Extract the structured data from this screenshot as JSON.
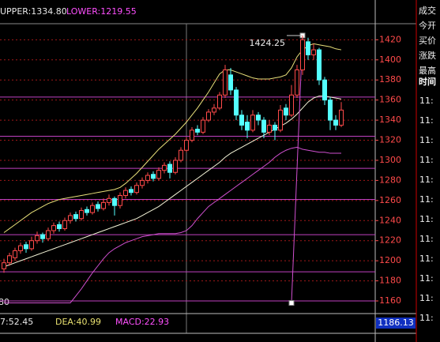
{
  "chart_data": {
    "type": "candlestick",
    "header": {
      "upper": "UPPER:1334.80",
      "lower": "LOWER:1219.55"
    },
    "footer": {
      "dif": "7:52.45",
      "dea": "DEA:40.99",
      "macd": "MACD:22.93"
    },
    "left_cut_label": "80",
    "current_label": "1186.13",
    "annotation": {
      "text": "1424.25",
      "value": 1424.25
    },
    "zigzag": {
      "x": [
        52,
        54
      ],
      "values": [
        1158,
        1424.25
      ]
    },
    "ylim": [
      1149,
      1436
    ],
    "yticks": [
      1160,
      1180,
      1200,
      1220,
      1240,
      1260,
      1280,
      1300,
      1320,
      1340,
      1360,
      1380,
      1400,
      1420
    ],
    "grid": true,
    "levels": [
      1363,
      1324,
      1292,
      1261,
      1226,
      1189,
      1160
    ],
    "up_color": "#ff4a4a",
    "down_color": "#54ffff",
    "candles": [
      [
        1192,
        1202,
        1188,
        1198
      ],
      [
        1198,
        1208,
        1195,
        1205
      ],
      [
        1203,
        1213,
        1200,
        1210
      ],
      [
        1210,
        1218,
        1207,
        1215
      ],
      [
        1216,
        1219,
        1208,
        1212
      ],
      [
        1212,
        1224,
        1210,
        1220
      ],
      [
        1220,
        1229,
        1217,
        1225
      ],
      [
        1226,
        1228,
        1218,
        1222
      ],
      [
        1222,
        1233,
        1220,
        1230
      ],
      [
        1230,
        1238,
        1227,
        1235
      ],
      [
        1236,
        1239,
        1229,
        1232
      ],
      [
        1232,
        1243,
        1230,
        1240
      ],
      [
        1240,
        1248,
        1237,
        1245
      ],
      [
        1246,
        1249,
        1239,
        1242
      ],
      [
        1242,
        1253,
        1240,
        1250
      ],
      [
        1251,
        1254,
        1245,
        1248
      ],
      [
        1248,
        1258,
        1246,
        1255
      ],
      [
        1256,
        1259,
        1249,
        1252
      ],
      [
        1252,
        1262,
        1250,
        1258
      ],
      [
        1258,
        1266,
        1255,
        1262
      ],
      [
        1262,
        1264,
        1245,
        1255
      ],
      [
        1255,
        1268,
        1252,
        1265
      ],
      [
        1265,
        1273,
        1262,
        1270
      ],
      [
        1271,
        1274,
        1265,
        1268
      ],
      [
        1268,
        1278,
        1266,
        1275
      ],
      [
        1275,
        1283,
        1272,
        1280
      ],
      [
        1280,
        1288,
        1277,
        1285
      ],
      [
        1286,
        1289,
        1279,
        1282
      ],
      [
        1282,
        1293,
        1280,
        1290
      ],
      [
        1290,
        1298,
        1287,
        1295
      ],
      [
        1296,
        1299,
        1282,
        1288
      ],
      [
        1288,
        1303,
        1286,
        1300
      ],
      [
        1300,
        1313,
        1298,
        1310
      ],
      [
        1310,
        1323,
        1308,
        1320
      ],
      [
        1320,
        1333,
        1318,
        1330
      ],
      [
        1331,
        1335,
        1325,
        1328
      ],
      [
        1328,
        1343,
        1326,
        1340
      ],
      [
        1340,
        1351,
        1338,
        1348
      ],
      [
        1348,
        1356,
        1345,
        1352
      ],
      [
        1352,
        1368,
        1350,
        1365
      ],
      [
        1365,
        1395,
        1362,
        1390
      ],
      [
        1385,
        1392,
        1365,
        1370
      ],
      [
        1370,
        1373,
        1340,
        1345
      ],
      [
        1345,
        1350,
        1330,
        1335
      ],
      [
        1338,
        1345,
        1322,
        1330
      ],
      [
        1330,
        1350,
        1328,
        1345
      ],
      [
        1345,
        1348,
        1335,
        1340
      ],
      [
        1340,
        1343,
        1322,
        1328
      ],
      [
        1328,
        1340,
        1325,
        1335
      ],
      [
        1335,
        1338,
        1320,
        1330
      ],
      [
        1330,
        1355,
        1328,
        1350
      ],
      [
        1352,
        1356,
        1340,
        1345
      ],
      [
        1345,
        1375,
        1343,
        1365
      ],
      [
        1365,
        1395,
        1362,
        1390
      ],
      [
        1390,
        1424.25,
        1385,
        1420
      ],
      [
        1418,
        1422,
        1400,
        1405
      ],
      [
        1405,
        1416,
        1400,
        1410
      ],
      [
        1410,
        1412,
        1375,
        1380
      ],
      [
        1380,
        1383,
        1355,
        1360
      ],
      [
        1360,
        1363,
        1330,
        1340
      ],
      [
        1340,
        1345,
        1330,
        1335
      ],
      [
        1335,
        1358,
        1333,
        1350
      ]
    ],
    "series": [
      {
        "color": "#e8e07a",
        "values": [
          1228,
          1232,
          1236,
          1240,
          1244,
          1248,
          1251,
          1254,
          1257,
          1259,
          1261,
          1262,
          1263,
          1264,
          1265,
          1266,
          1267,
          1268,
          1269,
          1270,
          1271,
          1273,
          1277,
          1282,
          1287,
          1293,
          1299,
          1305,
          1311,
          1316,
          1321,
          1326,
          1332,
          1338,
          1345,
          1352,
          1360,
          1368,
          1377,
          1386,
          1390,
          1390,
          1388,
          1386,
          1384,
          1382,
          1381,
          1381,
          1381,
          1382,
          1383,
          1385,
          1392,
          1403,
          1410,
          1414,
          1416,
          1415,
          1414,
          1413,
          1411,
          1410
        ]
      },
      {
        "color": "#f4f4d8",
        "values": [
          1194,
          1196,
          1198,
          1200,
          1202,
          1204,
          1206,
          1208,
          1210,
          1212,
          1214,
          1216,
          1218,
          1220,
          1222,
          1224,
          1226,
          1228,
          1230,
          1232,
          1234,
          1236,
          1238,
          1240,
          1242,
          1245,
          1248,
          1251,
          1254,
          1258,
          1262,
          1266,
          1270,
          1274,
          1278,
          1282,
          1286,
          1290,
          1294,
          1298,
          1303,
          1307,
          1310,
          1313,
          1316,
          1319,
          1322,
          1325,
          1328,
          1331,
          1334,
          1337,
          1341,
          1346,
          1352,
          1358,
          1362,
          1364,
          1364,
          1363,
          1362,
          1361
        ]
      },
      {
        "color": "#d050d0",
        "values": [
          1158,
          1158,
          1158,
          1158,
          1158,
          1158,
          1158,
          1158,
          1158,
          1158,
          1158,
          1158,
          1158,
          1165,
          1172,
          1180,
          1188,
          1195,
          1202,
          1208,
          1212,
          1215,
          1218,
          1220,
          1222,
          1224,
          1225,
          1226,
          1227,
          1227,
          1227,
          1227,
          1228,
          1230,
          1235,
          1242,
          1248,
          1254,
          1258,
          1262,
          1266,
          1270,
          1274,
          1278,
          1282,
          1286,
          1290,
          1294,
          1298,
          1303,
          1307,
          1310,
          1312,
          1313,
          1311,
          1310,
          1309,
          1308,
          1308,
          1307,
          1307,
          1307
        ]
      }
    ]
  },
  "side_panel": {
    "labels": [
      "成交",
      "今开",
      "买价",
      "涨跌",
      "最高"
    ],
    "time_header": "时间",
    "times": [
      "11:",
      "11:",
      "11:",
      "11:",
      "11:",
      "11:",
      "11:",
      "11:",
      "11:",
      "11:",
      "11:",
      "11:"
    ]
  }
}
